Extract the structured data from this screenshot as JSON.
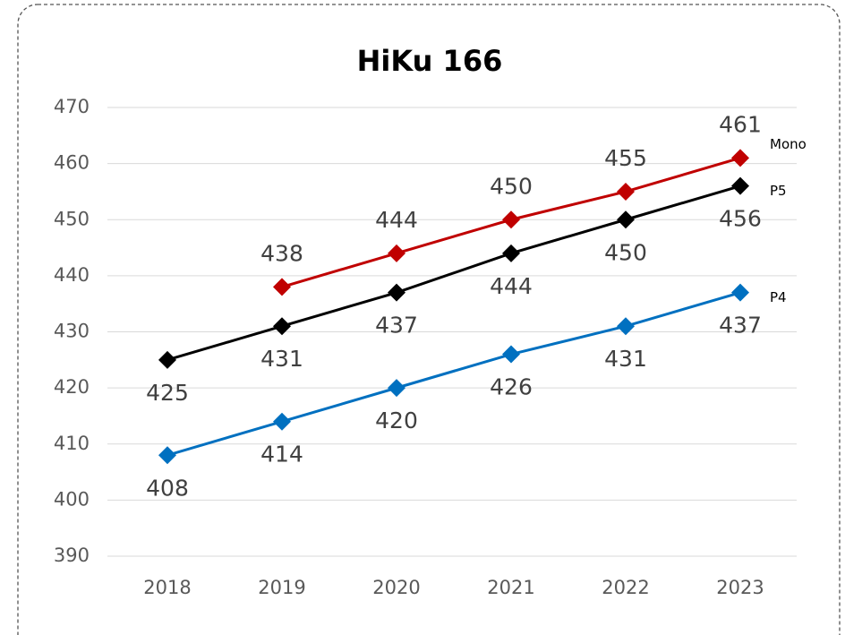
{
  "chart_data": {
    "type": "line",
    "title": "HiKu 166",
    "categories": [
      "2018",
      "2019",
      "2020",
      "2021",
      "2022",
      "2023"
    ],
    "series": [
      {
        "name": "Mono",
        "color": "#c00000",
        "values": [
          null,
          438,
          444,
          450,
          455,
          461
        ]
      },
      {
        "name": "P5",
        "color": "#000000",
        "values": [
          425,
          431,
          437,
          444,
          450,
          456
        ]
      },
      {
        "name": "P4",
        "color": "#0070c0",
        "values": [
          408,
          414,
          420,
          426,
          431,
          437
        ]
      }
    ],
    "ylim": [
      390,
      470
    ],
    "yticks": [
      390,
      400,
      410,
      420,
      430,
      440,
      450,
      460,
      470
    ],
    "grid": true
  }
}
